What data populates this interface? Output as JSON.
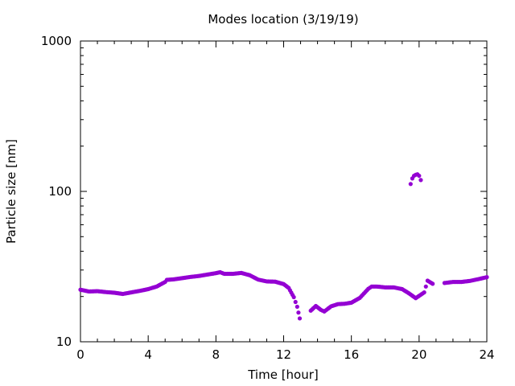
{
  "chart_data": {
    "type": "scatter",
    "title": "Modes location (3/19/19)",
    "xlabel": "Time [hour]",
    "ylabel": "Particle size [nm]",
    "xlim": [
      0,
      24
    ],
    "ylim": [
      10,
      1000
    ],
    "yscale": "log",
    "grid": false,
    "legend": "none",
    "xticks": [
      0,
      4,
      8,
      12,
      16,
      20,
      24
    ],
    "xtick_labels": [
      "0",
      "4",
      "8",
      "12",
      "16",
      "20",
      "24"
    ],
    "yticks": [
      10,
      100,
      1000
    ],
    "ytick_labels": [
      "10",
      "100",
      "1000"
    ],
    "marker_color": "#9400d3",
    "series": [
      {
        "points": [
          [
            0,
            22.2
          ],
          [
            0.5,
            21.6
          ],
          [
            1.0,
            21.7
          ],
          [
            1.5,
            21.4
          ],
          [
            2.0,
            21.2
          ],
          [
            2.5,
            20.8
          ],
          [
            3.0,
            21.3
          ],
          [
            3.5,
            21.8
          ],
          [
            4.0,
            22.4
          ],
          [
            4.5,
            23.3
          ],
          [
            5.0,
            25.0
          ],
          [
            5.1,
            25.8
          ],
          [
            5.5,
            26.0
          ],
          [
            6.0,
            26.5
          ],
          [
            6.5,
            27.0
          ],
          [
            7.0,
            27.4
          ],
          [
            7.5,
            28.0
          ],
          [
            8.0,
            28.6
          ],
          [
            8.25,
            29.0
          ],
          [
            8.5,
            28.3
          ],
          [
            9.0,
            28.3
          ],
          [
            9.5,
            28.7
          ],
          [
            10.0,
            27.7
          ],
          [
            10.5,
            25.9
          ],
          [
            11.0,
            25.2
          ],
          [
            11.5,
            25.1
          ],
          [
            12.0,
            24.2
          ],
          [
            12.3,
            22.8
          ],
          [
            12.6,
            19.8
          ],
          [
            12.8,
            17.1
          ],
          [
            12.95,
            14.3
          ],
          [
            13.6,
            16.1
          ],
          [
            13.9,
            17.3
          ],
          [
            14.2,
            16.3
          ],
          [
            14.4,
            15.9
          ],
          [
            14.8,
            17.2
          ],
          [
            15.2,
            17.8
          ],
          [
            15.6,
            17.9
          ],
          [
            16.0,
            18.2
          ],
          [
            16.5,
            19.6
          ],
          [
            17.0,
            22.5
          ],
          [
            17.2,
            23.3
          ],
          [
            17.5,
            23.3
          ],
          [
            18.0,
            23.0
          ],
          [
            18.5,
            23.0
          ],
          [
            19.0,
            22.4
          ],
          [
            19.4,
            21.0
          ],
          [
            19.8,
            19.5
          ],
          [
            20.3,
            21.3
          ],
          [
            20.5,
            25.5
          ],
          [
            20.8,
            24.3
          ],
          [
            21.5,
            24.6
          ],
          [
            22.0,
            25.0
          ],
          [
            22.5,
            25.0
          ],
          [
            23.0,
            25.4
          ],
          [
            23.5,
            26.1
          ],
          [
            24.0,
            26.9
          ]
        ]
      },
      {
        "points": [
          [
            19.5,
            112
          ],
          [
            19.6,
            122
          ],
          [
            19.7,
            127
          ],
          [
            19.8,
            129
          ],
          [
            19.9,
            130
          ],
          [
            20.0,
            127
          ],
          [
            20.1,
            119
          ]
        ]
      }
    ]
  }
}
